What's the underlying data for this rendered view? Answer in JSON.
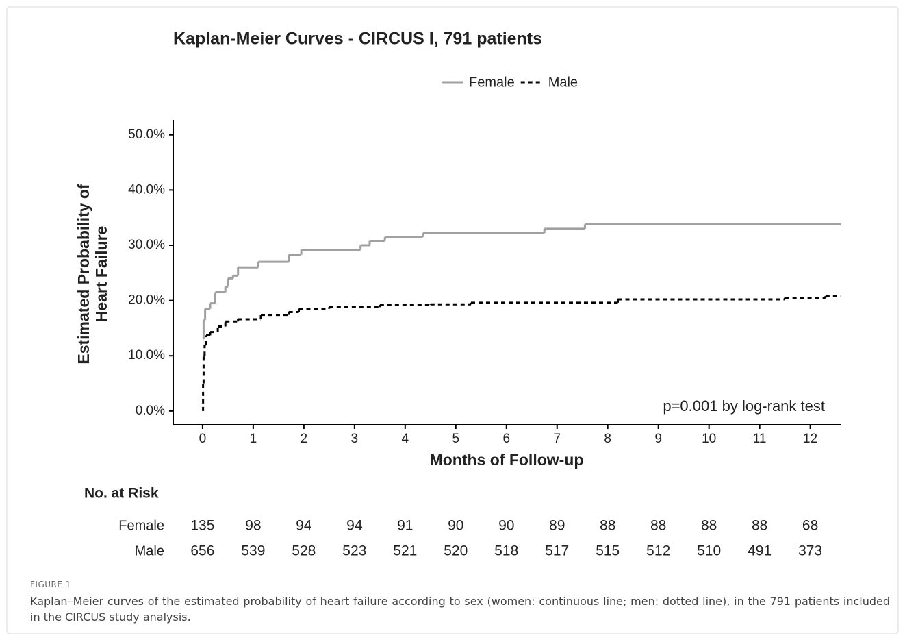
{
  "chart_data": {
    "type": "step",
    "title": "Kaplan-Meier Curves - CIRCUS I, 791 patients",
    "xlabel": "Months of Follow-up",
    "ylabel": [
      "Estimated Probability of",
      "Heart Failure"
    ],
    "annotation": "p=0.001 by log-rank test",
    "legend": "top",
    "xlim": [
      -0.58,
      12.6
    ],
    "ylim": [
      -2.5,
      52.7
    ],
    "xticks": [
      0,
      1,
      2,
      3,
      4,
      5,
      6,
      7,
      8,
      9,
      10,
      11,
      12
    ],
    "yticks": [
      {
        "value": 0,
        "label": "0.0%"
      },
      {
        "value": 10,
        "label": "10.0%"
      },
      {
        "value": 20,
        "label": "20.0%"
      },
      {
        "value": 30,
        "label": "30.0%"
      },
      {
        "value": 40,
        "label": "40.0%"
      },
      {
        "value": 50,
        "label": "50.0%"
      }
    ],
    "series": [
      {
        "name": "Female",
        "color": "#a0a0a0",
        "dash": false,
        "x": [
          0,
          0.02,
          0.05,
          0.15,
          0.25,
          0.45,
          0.5,
          0.6,
          0.7,
          1.1,
          1.7,
          1.95,
          3.12,
          3.3,
          3.6,
          4.35,
          6.75,
          7.55,
          12.6
        ],
        "values": [
          13,
          16.5,
          18.5,
          19.5,
          21.5,
          22.5,
          24,
          24.5,
          26,
          27,
          28.3,
          29.2,
          30,
          30.8,
          31.5,
          32.2,
          33,
          33.8,
          33.8
        ]
      },
      {
        "name": "Male",
        "color": "#000000",
        "dash": true,
        "x": [
          0,
          0.01,
          0.02,
          0.04,
          0.07,
          0.15,
          0.3,
          0.45,
          0.7,
          1.15,
          1.7,
          1.9,
          2.5,
          3.5,
          4.5,
          5.3,
          8.2,
          11.5,
          12.3,
          12.6
        ],
        "values": [
          0,
          5,
          10,
          12,
          13.7,
          14.3,
          15.3,
          16.2,
          16.6,
          17.4,
          17.9,
          18.5,
          18.8,
          19.2,
          19.3,
          19.6,
          20.2,
          20.5,
          20.8,
          20.8
        ]
      }
    ],
    "risk_table": {
      "title": "No. at Risk",
      "rows": [
        {
          "name": "Female",
          "color": "#aaaaaa",
          "values": [
            135,
            98,
            94,
            94,
            91,
            90,
            90,
            89,
            88,
            88,
            88,
            88,
            68
          ]
        },
        {
          "name": "Male",
          "color": "#222222",
          "values": [
            656,
            539,
            528,
            523,
            521,
            520,
            518,
            517,
            515,
            512,
            510,
            491,
            373
          ]
        }
      ]
    }
  },
  "caption": {
    "label": "FIGURE 1",
    "text": "Kaplan–Meier curves of the estimated probability of heart failure according to sex (women: continuous line; men: dotted line), in the 791 patients included in the CIRCUS study analysis."
  }
}
